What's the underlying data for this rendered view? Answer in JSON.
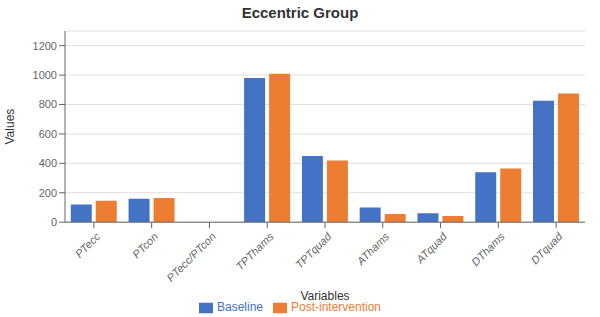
{
  "chart_data": {
    "type": "bar",
    "title": "Eccentric Group",
    "xlabel": "Variables",
    "ylabel": "Values",
    "categories": [
      "PTecc",
      "PTcon",
      "PTecc/PTcon",
      "TPThams",
      "TPTquad",
      "AThams",
      "ATquad",
      "DThams",
      "DTquad"
    ],
    "series": [
      {
        "name": "Baseline",
        "color": "#4472C4",
        "values": [
          120,
          160,
          0,
          980,
          450,
          100,
          60,
          340,
          825
        ]
      },
      {
        "name": "Post-intervention",
        "color": "#ED7D31",
        "values": [
          145,
          165,
          0,
          1010,
          420,
          55,
          42,
          365,
          875
        ]
      }
    ],
    "ylim": [
      0,
      1300
    ],
    "yticks": [
      0,
      200,
      400,
      600,
      800,
      1000,
      1200
    ],
    "grid": true,
    "legend": "bottom"
  }
}
